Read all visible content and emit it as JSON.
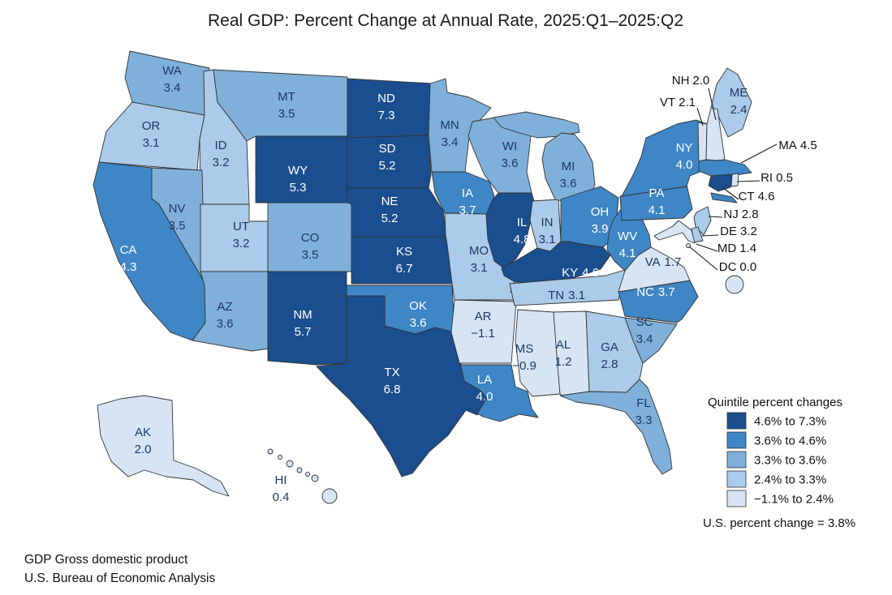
{
  "title": "Real GDP: Percent Change at Annual Rate, 2025:Q1–2025:Q2",
  "colors": {
    "quintiles": [
      "#1b4e8e",
      "#3e86c5",
      "#7fb0d9",
      "#aacbe9",
      "#d6e4f4"
    ],
    "border": "#333333",
    "label_dark": "#1f3864",
    "label_light": "#ffffff",
    "callout_text": "#111111",
    "callout_line": "#1a1a1a"
  },
  "map": {
    "states": [
      {
        "abbr": "WA",
        "value": "3.4",
        "quintile": 3,
        "display": "two"
      },
      {
        "abbr": "OR",
        "value": "3.1",
        "quintile": 4,
        "display": "two"
      },
      {
        "abbr": "CA",
        "value": "4.3",
        "quintile": 2,
        "display": "two"
      },
      {
        "abbr": "ID",
        "value": "3.2",
        "quintile": 4,
        "display": "two"
      },
      {
        "abbr": "NV",
        "value": "3.5",
        "quintile": 3,
        "display": "two"
      },
      {
        "abbr": "UT",
        "value": "3.2",
        "quintile": 4,
        "display": "two"
      },
      {
        "abbr": "AZ",
        "value": "3.6",
        "quintile": 3,
        "display": "two"
      },
      {
        "abbr": "MT",
        "value": "3.5",
        "quintile": 3,
        "display": "two"
      },
      {
        "abbr": "WY",
        "value": "5.3",
        "quintile": 1,
        "display": "two"
      },
      {
        "abbr": "CO",
        "value": "3.5",
        "quintile": 3,
        "display": "two"
      },
      {
        "abbr": "NM",
        "value": "5.7",
        "quintile": 1,
        "display": "two"
      },
      {
        "abbr": "ND",
        "value": "7.3",
        "quintile": 1,
        "display": "two"
      },
      {
        "abbr": "SD",
        "value": "5.2",
        "quintile": 1,
        "display": "two"
      },
      {
        "abbr": "NE",
        "value": "5.2",
        "quintile": 1,
        "display": "two"
      },
      {
        "abbr": "KS",
        "value": "6.7",
        "quintile": 1,
        "display": "two"
      },
      {
        "abbr": "OK",
        "value": "3.6",
        "quintile": 2,
        "display": "two"
      },
      {
        "abbr": "TX",
        "value": "6.8",
        "quintile": 1,
        "display": "two"
      },
      {
        "abbr": "MN",
        "value": "3.4",
        "quintile": 3,
        "display": "two"
      },
      {
        "abbr": "IA",
        "value": "3.7",
        "quintile": 2,
        "display": "two"
      },
      {
        "abbr": "MO",
        "value": "3.1",
        "quintile": 4,
        "display": "two"
      },
      {
        "abbr": "AR",
        "value": "−1.1",
        "quintile": 5,
        "display": "two"
      },
      {
        "abbr": "LA",
        "value": "4.0",
        "quintile": 2,
        "display": "two"
      },
      {
        "abbr": "WI",
        "value": "3.6",
        "quintile": 3,
        "display": "two"
      },
      {
        "abbr": "IL",
        "value": "4.8",
        "quintile": 1,
        "display": "two"
      },
      {
        "abbr": "IN",
        "value": "3.1",
        "quintile": 4,
        "display": "two"
      },
      {
        "abbr": "MI",
        "value": "3.6",
        "quintile": 3,
        "display": "two"
      },
      {
        "abbr": "OH",
        "value": "3.9",
        "quintile": 2,
        "display": "two"
      },
      {
        "abbr": "KY",
        "value": "4.6",
        "quintile": 1,
        "display": "inline"
      },
      {
        "abbr": "TN",
        "value": "3.1",
        "quintile": 4,
        "display": "inline"
      },
      {
        "abbr": "MS",
        "value": "−0.9",
        "quintile": 5,
        "display": "two"
      },
      {
        "abbr": "AL",
        "value": "1.2",
        "quintile": 5,
        "display": "two"
      },
      {
        "abbr": "GA",
        "value": "2.8",
        "quintile": 4,
        "display": "two"
      },
      {
        "abbr": "FL",
        "value": "3.3",
        "quintile": 3,
        "display": "two"
      },
      {
        "abbr": "SC",
        "value": "3.4",
        "quintile": 3,
        "display": "two"
      },
      {
        "abbr": "NC",
        "value": "3.7",
        "quintile": 2,
        "display": "inline"
      },
      {
        "abbr": "VA",
        "value": "1.7",
        "quintile": 5,
        "display": "inline"
      },
      {
        "abbr": "WV",
        "value": "4.1",
        "quintile": 2,
        "display": "two"
      },
      {
        "abbr": "PA",
        "value": "4.1",
        "quintile": 2,
        "display": "two"
      },
      {
        "abbr": "NY",
        "value": "4.0",
        "quintile": 2,
        "display": "two"
      },
      {
        "abbr": "ME",
        "value": "2.4",
        "quintile": 4,
        "display": "two"
      },
      {
        "abbr": "VT",
        "value": "2.1",
        "quintile": 5,
        "display": "callout"
      },
      {
        "abbr": "NH",
        "value": "2.0",
        "quintile": 5,
        "display": "callout"
      },
      {
        "abbr": "MA",
        "value": "4.5",
        "quintile": 2,
        "display": "callout"
      },
      {
        "abbr": "RI",
        "value": "0.5",
        "quintile": 5,
        "display": "callout"
      },
      {
        "abbr": "CT",
        "value": "4.6",
        "quintile": 1,
        "display": "callout"
      },
      {
        "abbr": "NJ",
        "value": "2.8",
        "quintile": 4,
        "display": "callout"
      },
      {
        "abbr": "DE",
        "value": "3.2",
        "quintile": 4,
        "display": "callout"
      },
      {
        "abbr": "MD",
        "value": "1.4",
        "quintile": 5,
        "display": "callout"
      },
      {
        "abbr": "DC",
        "value": "0.0",
        "quintile": 5,
        "display": "callout"
      },
      {
        "abbr": "AK",
        "value": "2.0",
        "quintile": 5,
        "display": "two"
      },
      {
        "abbr": "HI",
        "value": "0.4",
        "quintile": 5,
        "display": "two"
      }
    ]
  },
  "legend": {
    "title": "Quintile percent changes",
    "items": [
      {
        "label": "4.6% to 7.3%"
      },
      {
        "label": "3.6% to 4.6%"
      },
      {
        "label": "3.3% to 3.6%"
      },
      {
        "label": "2.4% to 3.3%"
      },
      {
        "label": "−1.1% to 2.4%"
      }
    ],
    "note": "U.S. percent change = 3.8%"
  },
  "footer": {
    "line1": "GDP Gross domestic product",
    "line2": "U.S. Bureau of Economic Analysis"
  }
}
